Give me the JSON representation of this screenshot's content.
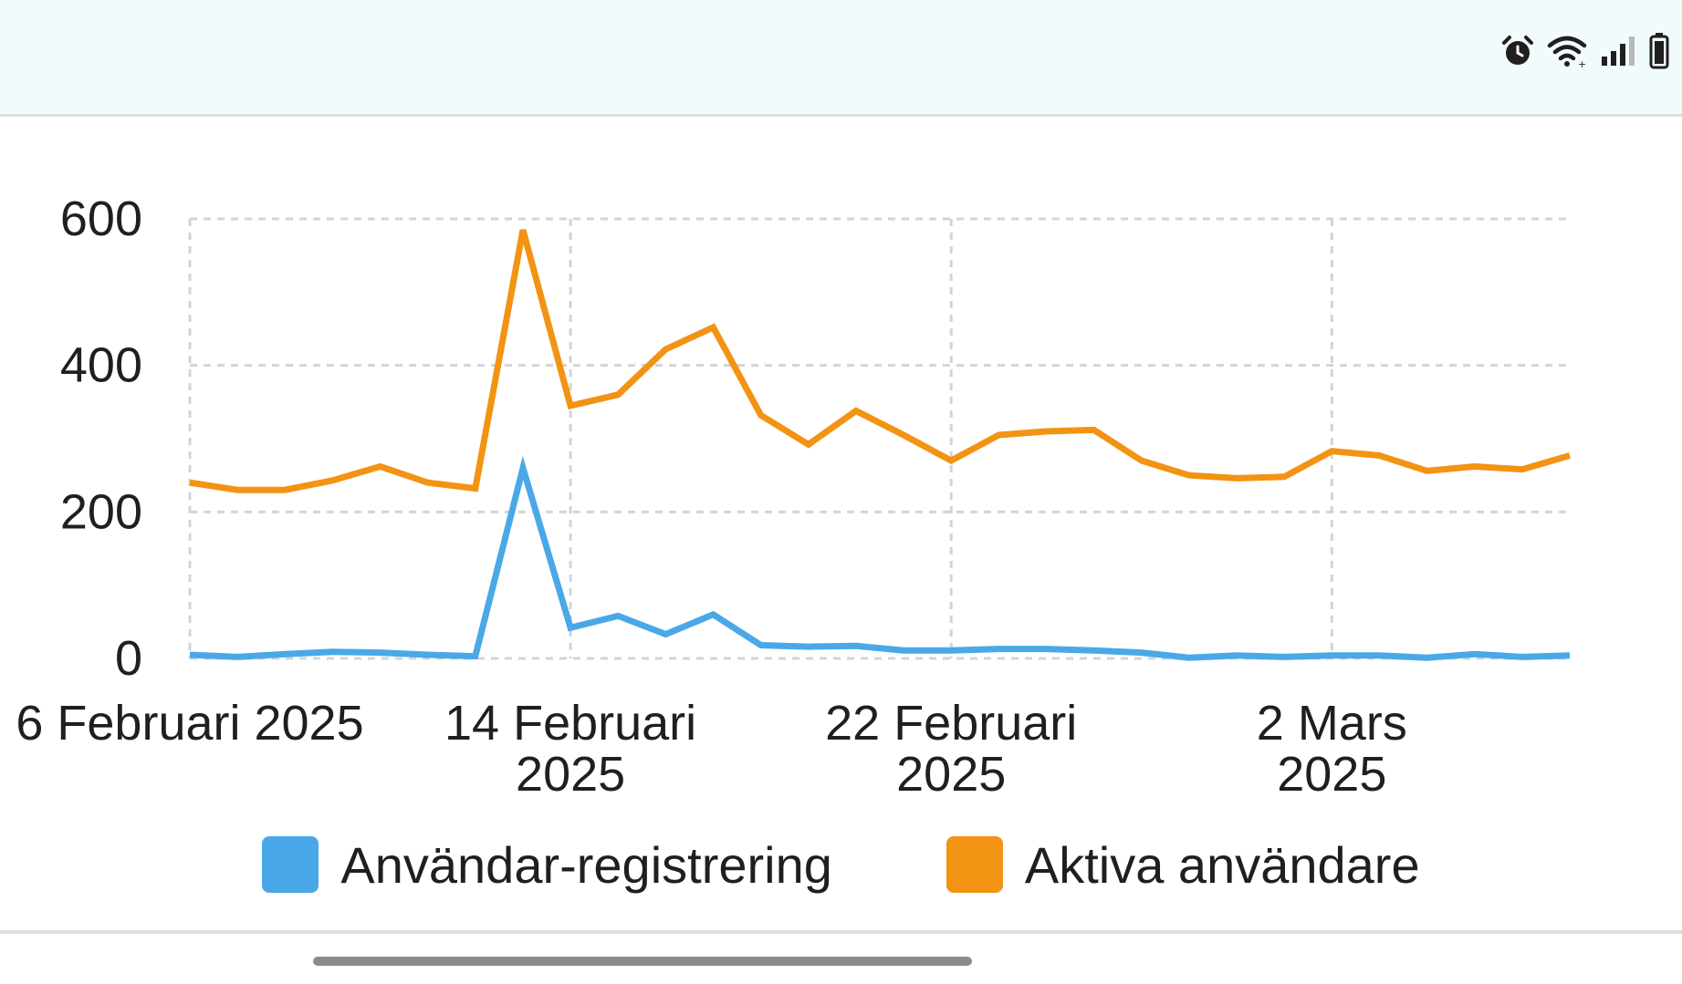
{
  "status_bar": {
    "icons": [
      "alarm-icon",
      "wifi-icon",
      "signal-icon",
      "battery-icon"
    ]
  },
  "chart_data": {
    "type": "line",
    "title": "",
    "xlabel": "",
    "ylabel": "",
    "ylim": [
      0,
      600
    ],
    "yticks": [
      "0",
      "200",
      "400",
      "600"
    ],
    "x": [
      "2025-02-06",
      "2025-02-07",
      "2025-02-08",
      "2025-02-09",
      "2025-02-10",
      "2025-02-11",
      "2025-02-12",
      "2025-02-13",
      "2025-02-14",
      "2025-02-15",
      "2025-02-16",
      "2025-02-17",
      "2025-02-18",
      "2025-02-19",
      "2025-02-20",
      "2025-02-21",
      "2025-02-22",
      "2025-02-23",
      "2025-02-24",
      "2025-02-25",
      "2025-02-26",
      "2025-02-27",
      "2025-02-28",
      "2025-03-01",
      "2025-03-02",
      "2025-03-03",
      "2025-03-04",
      "2025-03-05",
      "2025-03-06",
      "2025-03-07"
    ],
    "xticks": [
      {
        "x": "2025-02-06",
        "lines": [
          "6 Februari 2025"
        ]
      },
      {
        "x": "2025-02-14",
        "lines": [
          "14 Februari",
          "2025"
        ]
      },
      {
        "x": "2025-02-22",
        "lines": [
          "22 Februari",
          "2025"
        ]
      },
      {
        "x": "2025-03-02",
        "lines": [
          "2 Mars",
          "2025"
        ]
      }
    ],
    "grid": true,
    "legend_position": "bottom",
    "series": [
      {
        "name": "Användar-registrering",
        "color": "#4aa8e8",
        "values": [
          5,
          2,
          6,
          9,
          8,
          5,
          3,
          260,
          42,
          58,
          33,
          60,
          18,
          16,
          17,
          11,
          11,
          13,
          13,
          11,
          8,
          1,
          4,
          2,
          4,
          4,
          1,
          6,
          2,
          4
        ]
      },
      {
        "name": "Aktiva användare",
        "color": "#f39313",
        "values": [
          240,
          230,
          230,
          243,
          262,
          240,
          232,
          585,
          345,
          360,
          422,
          452,
          332,
          292,
          338,
          305,
          270,
          305,
          310,
          312,
          270,
          250,
          246,
          248,
          283,
          277,
          256,
          262,
          258,
          277
        ]
      }
    ]
  }
}
